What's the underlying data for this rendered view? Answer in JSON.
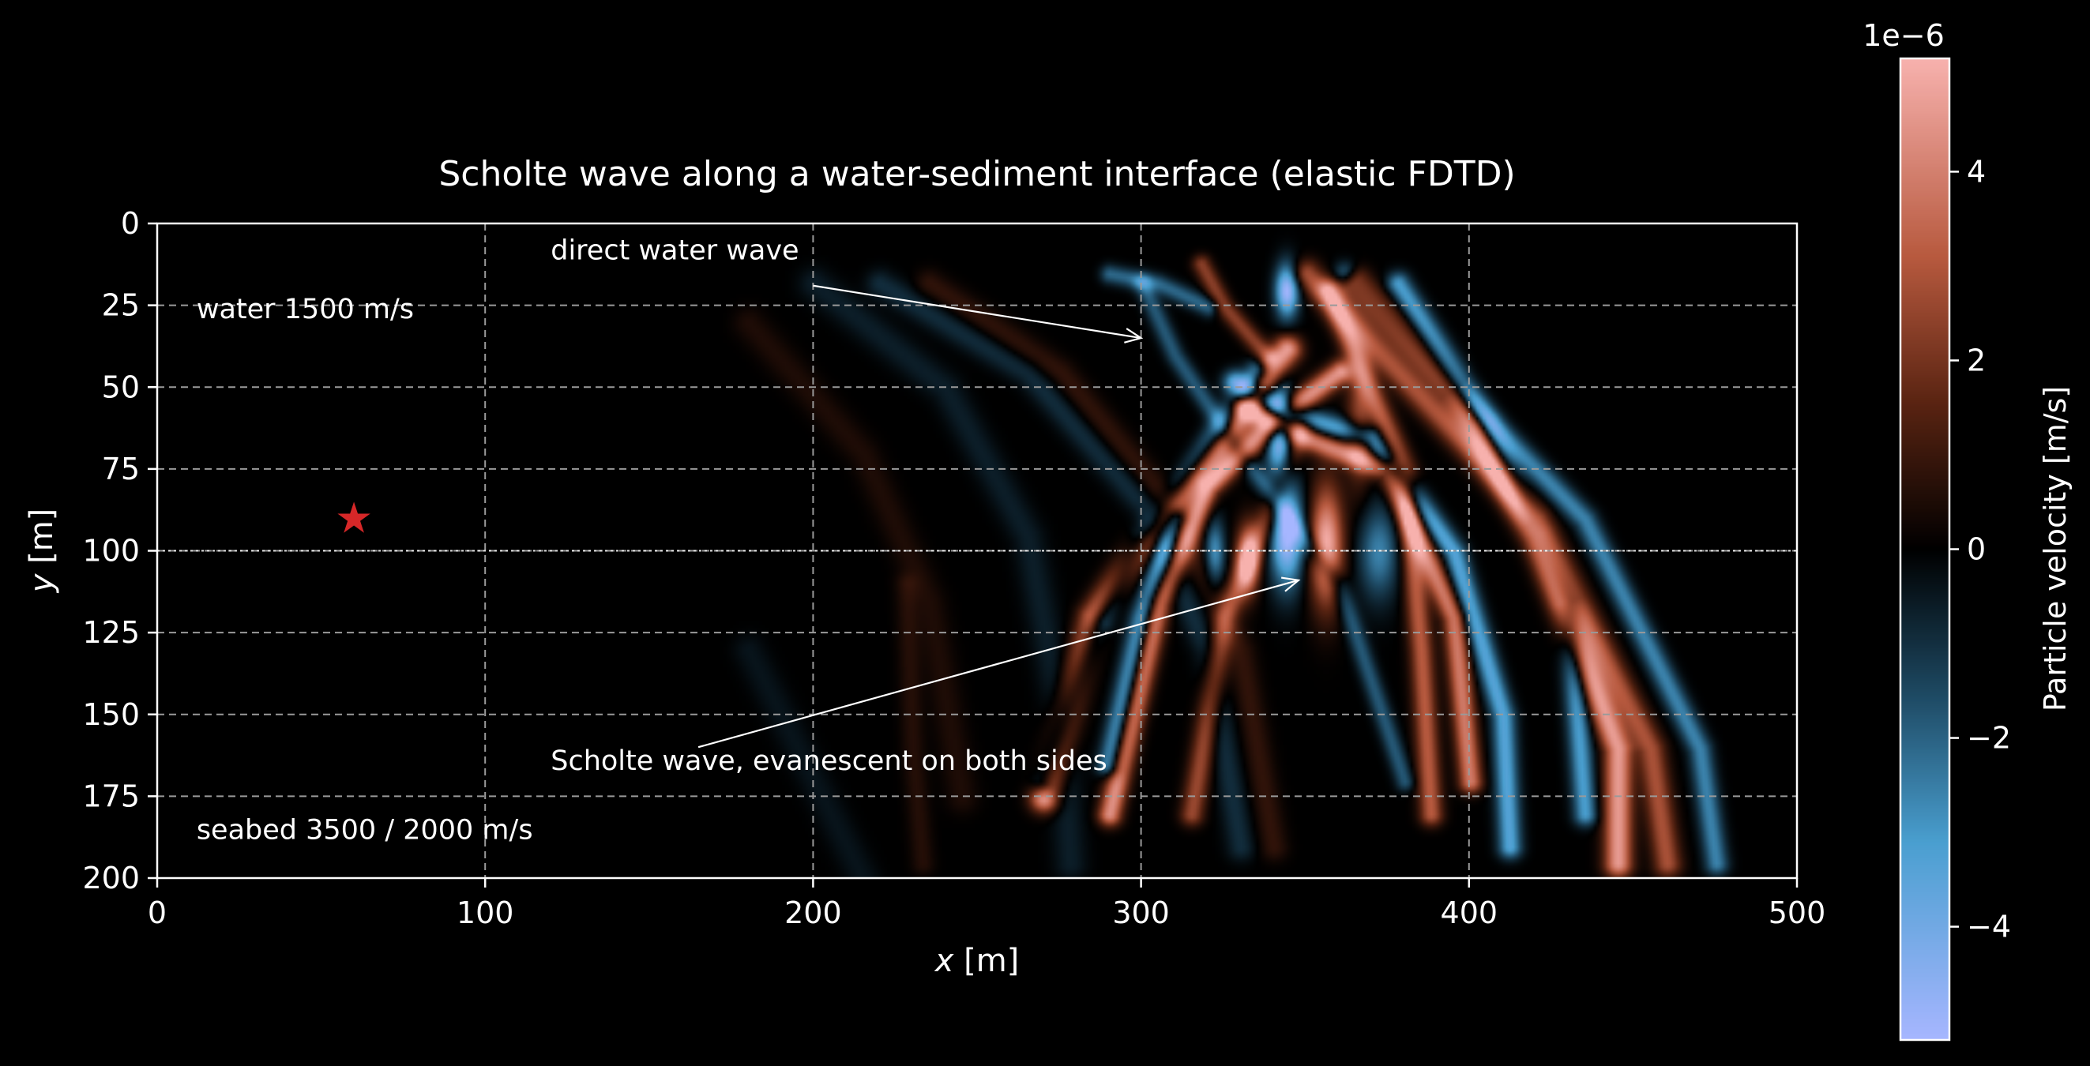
{
  "chart_data": {
    "type": "heatmap",
    "title": "Scholte wave along a water-sediment interface (elastic FDTD)",
    "xlabel": "x [m]",
    "ylabel": "y [m]",
    "xlim": [
      0,
      500
    ],
    "ylim": [
      200,
      0
    ],
    "y_inverted": true,
    "xticks": [
      0,
      100,
      200,
      300,
      400,
      500
    ],
    "yticks": [
      0,
      25,
      50,
      75,
      100,
      125,
      150,
      175,
      200
    ],
    "grid": true,
    "interface_y": 100,
    "source": {
      "x": 60,
      "y": 90,
      "marker": "star",
      "color": "#d62728"
    },
    "region_labels": [
      {
        "text": "water 1500 m/s",
        "x": 12,
        "y": 29
      },
      {
        "text": "seabed 3500 / 2000 m/s",
        "x": 12,
        "y": 188
      }
    ],
    "annotations": [
      {
        "text": "direct water wave",
        "text_x": 120,
        "text_y": 11,
        "arrow_to": [
          300,
          35
        ]
      },
      {
        "text": "Scholte wave, evanescent on both sides",
        "text_x": 120,
        "text_y": 167,
        "arrow_to": [
          348,
          109
        ]
      }
    ],
    "colorbar": {
      "label": "Particle velocity [m/s]",
      "offset_text": "1e−6",
      "range": [
        -5.2,
        5.2
      ],
      "ticks": [
        -4,
        -2,
        0,
        2,
        4
      ],
      "tick_labels": [
        "−4",
        "−2",
        "0",
        "2",
        "4"
      ],
      "colors": {
        "min": "#a6b6ff",
        "neg_mid": "#4a9fd0",
        "neg_dark": "#1e4a64",
        "zero": "#000000",
        "pos_dark": "#5a2412",
        "pos_mid": "#b85a3f",
        "max": "#f7b1ad"
      }
    },
    "field_features": [
      {
        "kind": "band",
        "sign": "pos",
        "amp": 0.55,
        "pts": [
          [
            350,
            15
          ],
          [
            420,
            90
          ],
          [
            455,
            160
          ],
          [
            460,
            195
          ]
        ],
        "width": 6
      },
      {
        "kind": "band",
        "sign": "neg",
        "amp": 0.5,
        "pts": [
          [
            362,
            15
          ],
          [
            435,
            90
          ],
          [
            470,
            160
          ],
          [
            475,
            195
          ]
        ],
        "width": 5
      },
      {
        "kind": "band",
        "sign": "pos",
        "amp": 0.9,
        "pts": [
          [
            365,
            18
          ],
          [
            395,
            50
          ],
          [
            420,
            95
          ],
          [
            445,
            160
          ],
          [
            445,
            195
          ]
        ],
        "width": 6
      },
      {
        "kind": "band",
        "sign": "neg",
        "amp": 0.6,
        "pts": [
          [
            378,
            18
          ],
          [
            405,
            60
          ],
          [
            430,
            115
          ],
          [
            435,
            180
          ]
        ],
        "width": 5
      },
      {
        "kind": "band",
        "sign": "neg",
        "amp": 0.65,
        "pts": [
          [
            328,
            48
          ],
          [
            345,
            58
          ],
          [
            370,
            65
          ],
          [
            395,
            100
          ],
          [
            410,
            150
          ],
          [
            412,
            190
          ]
        ],
        "width": 5
      },
      {
        "kind": "band",
        "sign": "pos",
        "amp": 0.75,
        "pts": [
          [
            330,
            55
          ],
          [
            350,
            65
          ],
          [
            375,
            75
          ],
          [
            395,
            120
          ],
          [
            400,
            170
          ]
        ],
        "width": 5
      },
      {
        "kind": "band",
        "sign": "pos",
        "amp": 0.6,
        "pts": [
          [
            357,
            20
          ],
          [
            365,
            40
          ],
          [
            380,
            75
          ],
          [
            385,
            130
          ],
          [
            388,
            180
          ]
        ],
        "width": 5
      },
      {
        "kind": "band",
        "sign": "pos",
        "amp": 0.95,
        "pts": [
          [
            344,
            38
          ],
          [
            325,
            65
          ],
          [
            305,
            90
          ],
          [
            285,
            120
          ],
          [
            270,
            175
          ]
        ],
        "width": 6
      },
      {
        "kind": "band",
        "sign": "neg",
        "amp": 0.75,
        "pts": [
          [
            335,
            45
          ],
          [
            318,
            70
          ],
          [
            300,
            95
          ],
          [
            285,
            125
          ],
          [
            270,
            170
          ]
        ],
        "width": 5
      },
      {
        "kind": "band",
        "sign": "pos",
        "amp": 0.85,
        "pts": [
          [
            360,
            45
          ],
          [
            340,
            60
          ],
          [
            320,
            80
          ],
          [
            305,
            115
          ],
          [
            290,
            180
          ]
        ],
        "width": 5
      },
      {
        "kind": "band",
        "sign": "neg",
        "amp": 0.7,
        "pts": [
          [
            310,
            90
          ],
          [
            300,
            120
          ],
          [
            290,
            165
          ]
        ],
        "width": 5
      },
      {
        "kind": "band",
        "sign": "pos",
        "amp": 0.5,
        "pts": [
          [
            348,
            62
          ],
          [
            340,
            85
          ],
          [
            325,
            120
          ],
          [
            315,
            180
          ]
        ],
        "width": 5
      },
      {
        "kind": "band",
        "sign": "pos",
        "amp": 0.45,
        "pts": [
          [
            318,
            12
          ],
          [
            325,
            25
          ],
          [
            338,
            40
          ]
        ],
        "width": 4
      },
      {
        "kind": "band",
        "sign": "neg",
        "amp": 0.4,
        "pts": [
          [
            290,
            15
          ],
          [
            305,
            18
          ],
          [
            320,
            25
          ]
        ],
        "width": 4
      },
      {
        "kind": "band",
        "sign": "neg",
        "amp": 0.35,
        "pts": [
          [
            300,
            18
          ],
          [
            310,
            40
          ],
          [
            330,
            70
          ],
          [
            360,
            110
          ],
          [
            380,
            170
          ]
        ],
        "width": 4
      },
      {
        "kind": "band",
        "sign": "neg",
        "amp": 0.18,
        "pts": [
          [
            220,
            18
          ],
          [
            265,
            45
          ],
          [
            300,
            85
          ],
          [
            320,
            130
          ],
          [
            330,
            190
          ]
        ],
        "width": 6
      },
      {
        "kind": "band",
        "sign": "pos",
        "amp": 0.16,
        "pts": [
          [
            235,
            18
          ],
          [
            275,
            45
          ],
          [
            308,
            85
          ],
          [
            330,
            130
          ],
          [
            340,
            190
          ]
        ],
        "width": 6
      },
      {
        "kind": "band",
        "sign": "neg",
        "amp": 0.12,
        "pts": [
          [
            200,
            18
          ],
          [
            240,
            50
          ],
          [
            265,
            95
          ],
          [
            275,
            150
          ],
          [
            278,
            195
          ]
        ],
        "width": 7
      },
      {
        "kind": "band",
        "sign": "pos",
        "amp": 0.1,
        "pts": [
          [
            180,
            30
          ],
          [
            215,
            70
          ],
          [
            235,
            115
          ],
          [
            245,
            175
          ]
        ],
        "width": 7
      },
      {
        "kind": "band",
        "sign": "pos",
        "amp": 0.12,
        "pts": [
          [
            228,
            110
          ],
          [
            230,
            160
          ],
          [
            233,
            195
          ]
        ],
        "width": 5
      },
      {
        "kind": "band",
        "sign": "neg",
        "amp": 0.08,
        "pts": [
          [
            180,
            130
          ],
          [
            200,
            170
          ],
          [
            215,
            200
          ]
        ],
        "width": 7
      },
      {
        "kind": "blob",
        "sign": "neg",
        "amp": 1.0,
        "cx": 344,
        "cy": 20,
        "rx": 3.5,
        "ry": 8
      },
      {
        "kind": "blob",
        "sign": "neg",
        "amp": 1.0,
        "cx": 342,
        "cy": 64,
        "rx": 4,
        "ry": 15
      },
      {
        "kind": "blob",
        "sign": "neg",
        "amp": 1.0,
        "cx": 344,
        "cy": 95,
        "rx": 5,
        "ry": 15
      },
      {
        "kind": "blob",
        "sign": "pos",
        "amp": 1.0,
        "cx": 356,
        "cy": 98,
        "rx": 5,
        "ry": 18
      },
      {
        "kind": "blob",
        "sign": "pos",
        "amp": 0.9,
        "cx": 332,
        "cy": 102,
        "rx": 3.5,
        "ry": 10
      },
      {
        "kind": "blob",
        "sign": "neg",
        "amp": 0.55,
        "cx": 322,
        "cy": 100,
        "rx": 3,
        "ry": 10
      },
      {
        "kind": "blob",
        "sign": "neg",
        "amp": 0.5,
        "cx": 372,
        "cy": 100,
        "rx": 6,
        "ry": 14
      },
      {
        "kind": "blob",
        "sign": "pos",
        "amp": 0.45,
        "cx": 366,
        "cy": 60,
        "rx": 4,
        "ry": 20
      }
    ]
  }
}
